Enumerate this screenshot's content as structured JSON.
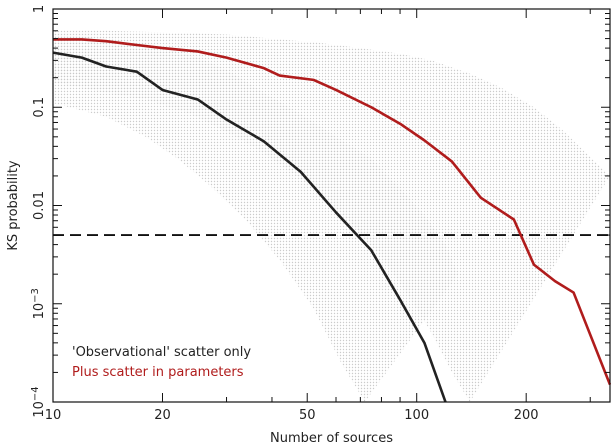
{
  "chart_data": {
    "type": "line",
    "title": "",
    "xlabel": "Number of sources",
    "ylabel": "KS probability",
    "xscale": "log",
    "yscale": "log",
    "xlim": [
      10,
      340
    ],
    "ylim": [
      0.0001,
      1
    ],
    "x_ticks": [
      {
        "value": 10,
        "label": "10"
      },
      {
        "value": 20,
        "label": "20"
      },
      {
        "value": 50,
        "label": "50"
      },
      {
        "value": 100,
        "label": "100"
      },
      {
        "value": 200,
        "label": "200"
      }
    ],
    "y_ticks": [
      {
        "value": 1,
        "base": "1",
        "exp": ""
      },
      {
        "value": 0.1,
        "base": "0.1",
        "exp": ""
      },
      {
        "value": 0.01,
        "base": "0.01",
        "exp": ""
      },
      {
        "value": 0.001,
        "base": "10",
        "exp": "−3"
      },
      {
        "value": 0.0001,
        "base": "10",
        "exp": "−4"
      }
    ],
    "grid": false,
    "legend_position": "bottom-left",
    "threshold": {
      "y": 0.005,
      "style": "dashed",
      "color": "#111111"
    },
    "series": [
      {
        "name": "'Observational' scatter only",
        "color": "#222222",
        "x": [
          10,
          12,
          14,
          17,
          20,
          25,
          30,
          38,
          48,
          60,
          75,
          90,
          105,
          120
        ],
        "y": [
          0.36,
          0.32,
          0.26,
          0.23,
          0.15,
          0.12,
          0.075,
          0.045,
          0.022,
          0.0085,
          0.0035,
          0.0011,
          0.0004,
          0.0001
        ],
        "band_upper": [
          0.55,
          0.52,
          0.5,
          0.45,
          0.4,
          0.32,
          0.24,
          0.14,
          0.085,
          0.05,
          0.03,
          0.015,
          0.008,
          0.004,
          0.002
        ],
        "band_lower": [
          0.11,
          0.08,
          0.05,
          0.03,
          0.016,
          0.007,
          0.0028,
          0.0009,
          0.00025,
          0.0001
        ],
        "band_upper_x": [
          10,
          12,
          14,
          17,
          20,
          25,
          30,
          38,
          48,
          60,
          75,
          90,
          105,
          120,
          130
        ],
        "band_lower_x": [
          10,
          14,
          18,
          22,
          27,
          34,
          42,
          52,
          62,
          72
        ]
      },
      {
        "name": "Plus scatter in parameters",
        "color": "#b01c1c",
        "x": [
          10,
          12,
          14,
          17,
          20,
          25,
          30,
          38,
          42,
          52,
          60,
          75,
          90,
          105,
          125,
          150,
          185,
          210,
          240,
          270,
          340
        ],
        "y": [
          0.49,
          0.49,
          0.47,
          0.43,
          0.4,
          0.37,
          0.32,
          0.25,
          0.21,
          0.19,
          0.15,
          0.1,
          0.068,
          0.046,
          0.028,
          0.012,
          0.0072,
          0.0025,
          0.0017,
          0.0013,
          0.00015
        ],
        "band_upper": [
          0.6,
          0.6,
          0.58,
          0.55,
          0.5,
          0.45,
          0.4,
          0.35,
          0.3,
          0.22,
          0.16,
          0.1,
          0.06,
          0.035,
          0.02
        ],
        "band_lower": [
          0.18,
          0.14,
          0.12,
          0.085,
          0.05,
          0.03,
          0.015,
          0.007,
          0.003,
          0.0012,
          0.0005,
          0.0002,
          0.0001
        ],
        "band_upper_x": [
          10,
          14,
          20,
          30,
          40,
          55,
          70,
          90,
          110,
          140,
          170,
          210,
          250,
          290,
          340
        ],
        "band_lower_x": [
          10,
          14,
          18,
          24,
          32,
          40,
          52,
          65,
          80,
          95,
          110,
          125,
          140
        ]
      }
    ]
  }
}
